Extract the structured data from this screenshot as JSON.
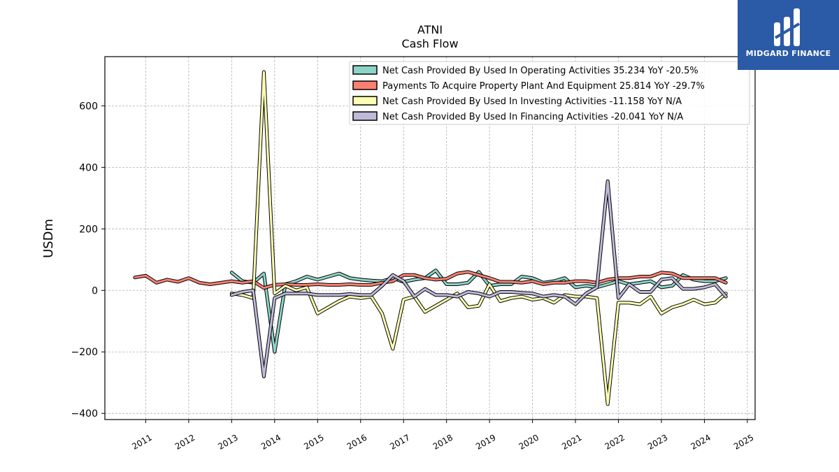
{
  "chart_data": {
    "type": "line",
    "title": "ATNI",
    "subtitle": "Cash Flow",
    "ylabel": "USDm",
    "xlabel": "",
    "x_ticks": [
      "2011",
      "2012",
      "2013",
      "2014",
      "2015",
      "2016",
      "2017",
      "2018",
      "2019",
      "2020",
      "2021",
      "2022",
      "2023",
      "2024",
      "2025"
    ],
    "y_ticks": [
      "600",
      "400",
      "200",
      "0",
      "−200",
      "−400"
    ],
    "y_tick_values": [
      600,
      400,
      200,
      0,
      -200,
      -400
    ],
    "xlim": [
      2010.05,
      2025.18
    ],
    "ylim": [
      -420,
      760
    ],
    "grid": true,
    "legend_position": "top-right",
    "series": [
      {
        "name": "Net Cash Provided By Used In Operating Activities  35.234 YoY -20.5%",
        "color": "#8dd3c7",
        "x": [
          2013.0,
          2013.25,
          2013.5,
          2013.75,
          2014.0,
          2014.25,
          2014.5,
          2014.75,
          2015.0,
          2015.25,
          2015.5,
          2015.75,
          2016.0,
          2016.25,
          2016.5,
          2016.75,
          2017.0,
          2017.25,
          2017.5,
          2017.75,
          2018.0,
          2018.25,
          2018.5,
          2018.75,
          2019.0,
          2019.25,
          2019.5,
          2019.75,
          2020.0,
          2020.25,
          2020.5,
          2020.75,
          2021.0,
          2021.25,
          2021.5,
          2021.75,
          2022.0,
          2022.25,
          2022.5,
          2022.75,
          2023.0,
          2023.25,
          2023.5,
          2023.75,
          2024.0,
          2024.25,
          2024.5
        ],
        "y": [
          58,
          30,
          25,
          55,
          -200,
          20,
          30,
          45,
          35,
          45,
          55,
          40,
          35,
          32,
          30,
          40,
          28,
          35,
          40,
          65,
          20,
          20,
          25,
          60,
          15,
          20,
          20,
          45,
          40,
          25,
          30,
          40,
          10,
          15,
          10,
          20,
          30,
          20,
          25,
          30,
          10,
          15,
          50,
          35,
          30,
          30,
          40
        ]
      },
      {
        "name": "Payments To Acquire Property Plant And Equipment  25.814 YoY -29.7%",
        "color": "#fb8072",
        "x": [
          2010.75,
          2011.0,
          2011.25,
          2011.5,
          2011.75,
          2012.0,
          2012.25,
          2012.5,
          2012.75,
          2013.0,
          2013.25,
          2013.5,
          2013.75,
          2014.0,
          2014.25,
          2014.5,
          2014.75,
          2015.0,
          2015.25,
          2015.5,
          2015.75,
          2016.0,
          2016.25,
          2016.5,
          2016.75,
          2017.0,
          2017.25,
          2017.5,
          2017.75,
          2018.0,
          2018.25,
          2018.5,
          2018.75,
          2019.0,
          2019.25,
          2019.5,
          2019.75,
          2020.0,
          2020.25,
          2020.5,
          2020.75,
          2021.0,
          2021.25,
          2021.5,
          2021.75,
          2022.0,
          2022.25,
          2022.5,
          2022.75,
          2023.0,
          2023.25,
          2023.5,
          2023.75,
          2024.0,
          2024.25,
          2024.5
        ],
        "y": [
          42,
          48,
          25,
          35,
          28,
          40,
          25,
          20,
          25,
          30,
          25,
          30,
          8,
          18,
          20,
          18,
          18,
          20,
          18,
          18,
          20,
          18,
          18,
          25,
          30,
          50,
          50,
          40,
          35,
          38,
          55,
          60,
          50,
          40,
          28,
          28,
          25,
          30,
          20,
          25,
          25,
          30,
          30,
          25,
          35,
          40,
          40,
          45,
          45,
          58,
          55,
          40,
          40,
          40,
          40,
          25
        ]
      },
      {
        "name": "Net Cash Provided By Used In Investing Activities  -11.158 YoY N/A",
        "color": "#ffffb3",
        "x": [
          2013.0,
          2013.25,
          2013.5,
          2013.75,
          2014.0,
          2014.25,
          2014.5,
          2014.75,
          2015.0,
          2015.25,
          2015.5,
          2015.75,
          2016.0,
          2016.25,
          2016.5,
          2016.75,
          2017.0,
          2017.25,
          2017.5,
          2017.75,
          2018.0,
          2018.25,
          2018.5,
          2018.75,
          2019.0,
          2019.25,
          2019.5,
          2019.75,
          2020.0,
          2020.25,
          2020.5,
          2020.75,
          2021.0,
          2021.25,
          2021.5,
          2021.75,
          2022.0,
          2022.25,
          2022.5,
          2022.75,
          2023.0,
          2023.25,
          2023.5,
          2023.75,
          2024.0,
          2024.25,
          2024.5
        ],
        "y": [
          -10,
          -15,
          -25,
          710,
          -10,
          15,
          0,
          10,
          -75,
          -55,
          -35,
          -20,
          -25,
          -20,
          -75,
          -190,
          -30,
          -20,
          -70,
          -50,
          -30,
          -10,
          -55,
          -50,
          20,
          -35,
          -25,
          -20,
          -30,
          -25,
          -40,
          -15,
          -20,
          -20,
          -25,
          -370,
          -40,
          -40,
          -45,
          -20,
          -75,
          -55,
          -45,
          -30,
          -45,
          -40,
          -10
        ]
      },
      {
        "name": "Net Cash Provided By Used In Financing Activities  -20.041 YoY N/A",
        "color": "#bebada",
        "x": [
          2013.0,
          2013.25,
          2013.5,
          2013.75,
          2014.0,
          2014.25,
          2014.5,
          2014.75,
          2015.0,
          2015.25,
          2015.5,
          2015.75,
          2016.0,
          2016.25,
          2016.5,
          2016.75,
          2017.0,
          2017.25,
          2017.5,
          2017.75,
          2018.0,
          2018.25,
          2018.5,
          2018.75,
          2019.0,
          2019.25,
          2019.5,
          2019.75,
          2020.0,
          2020.25,
          2020.5,
          2020.75,
          2021.0,
          2021.25,
          2021.5,
          2021.75,
          2022.0,
          2022.25,
          2022.5,
          2022.75,
          2023.0,
          2023.25,
          2023.5,
          2023.75,
          2024.0,
          2024.25,
          2024.5
        ],
        "y": [
          -15,
          -5,
          0,
          -280,
          -25,
          -10,
          -10,
          -10,
          -15,
          -15,
          -15,
          -12,
          -15,
          -15,
          15,
          50,
          30,
          -20,
          5,
          -15,
          -15,
          -20,
          -5,
          -10,
          -20,
          -5,
          -5,
          -8,
          -10,
          -20,
          -15,
          -20,
          -45,
          -10,
          10,
          355,
          -25,
          20,
          -5,
          -5,
          35,
          40,
          5,
          5,
          10,
          20,
          -20
        ]
      }
    ]
  },
  "logo": {
    "text": "MIDGARD FINANCE"
  }
}
